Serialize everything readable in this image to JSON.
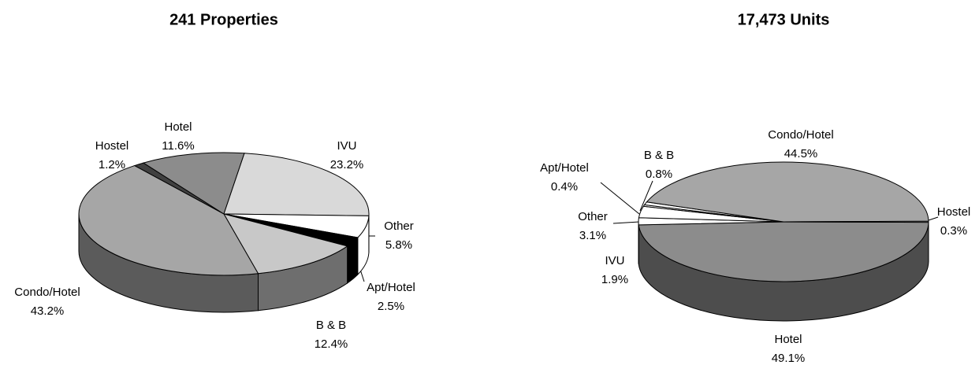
{
  "chart_data": [
    {
      "type": "pie",
      "title": "241 Properties",
      "categories": [
        "Hostel",
        "Hotel",
        "IVU",
        "Other",
        "Apt/Hotel",
        "B & B",
        "Condo/Hotel"
      ],
      "values": [
        1.2,
        11.6,
        23.2,
        5.8,
        2.5,
        12.4,
        43.2
      ],
      "value_labels": [
        "1.2%",
        "11.6%",
        "23.2%",
        "5.8%",
        "2.5%",
        "12.4%",
        "43.2%"
      ],
      "colors": [
        "#404040",
        "#8c8c8c",
        "#d9d9d9",
        "#ffffff",
        "#000000",
        "#c8c8c8",
        "#a6a6a6"
      ]
    },
    {
      "type": "pie",
      "title": "17,473 Units",
      "categories": [
        "Hotel",
        "IVU",
        "Other",
        "Apt/Hotel",
        "B & B",
        "Condo/Hotel",
        "Hostel"
      ],
      "values": [
        49.1,
        1.9,
        3.1,
        0.4,
        0.8,
        44.5,
        0.3
      ],
      "value_labels": [
        "49.1%",
        "1.9%",
        "3.1%",
        "0.4%",
        "0.8%",
        "44.5%",
        "0.3%"
      ],
      "colors": [
        "#8c8c8c",
        "#ffffff",
        "#ffffff",
        "#ffffff",
        "#ffffff",
        "#a6a6a6",
        "#ffffff"
      ]
    }
  ]
}
